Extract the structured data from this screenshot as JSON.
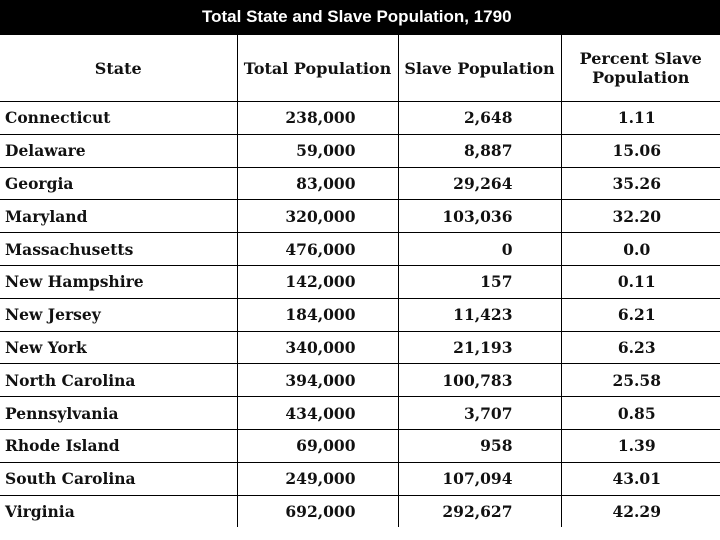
{
  "title": "Total State and Slave Population, 1790",
  "headers": {
    "state": "State",
    "total": "Total Population",
    "slave": "Slave Population",
    "percent": "Percent Slave Population"
  },
  "rows": [
    {
      "state": "Connecticut",
      "total": "238,000",
      "slave": "2,648",
      "percent": "1.11"
    },
    {
      "state": "Delaware",
      "total": "59,000",
      "slave": "8,887",
      "percent": "15.06"
    },
    {
      "state": "Georgia",
      "total": "83,000",
      "slave": "29,264",
      "percent": "35.26"
    },
    {
      "state": "Maryland",
      "total": "320,000",
      "slave": "103,036",
      "percent": "32.20"
    },
    {
      "state": "Massachusetts",
      "total": "476,000",
      "slave": "0",
      "percent": "0.0"
    },
    {
      "state": "New Hampshire",
      "total": "142,000",
      "slave": "157",
      "percent": "0.11"
    },
    {
      "state": "New Jersey",
      "total": "184,000",
      "slave": "11,423",
      "percent": "6.21"
    },
    {
      "state": "New York",
      "total": "340,000",
      "slave": "21,193",
      "percent": "6.23"
    },
    {
      "state": "North Carolina",
      "total": "394,000",
      "slave": "100,783",
      "percent": "25.58"
    },
    {
      "state": "Pennsylvania",
      "total": "434,000",
      "slave": "3,707",
      "percent": "0.85"
    },
    {
      "state": "Rhode Island",
      "total": "69,000",
      "slave": "958",
      "percent": "1.39"
    },
    {
      "state": "South Carolina",
      "total": "249,000",
      "slave": "107,094",
      "percent": "43.01"
    },
    {
      "state": "Virginia",
      "total": "692,000",
      "slave": "292,627",
      "percent": "42.29"
    }
  ]
}
